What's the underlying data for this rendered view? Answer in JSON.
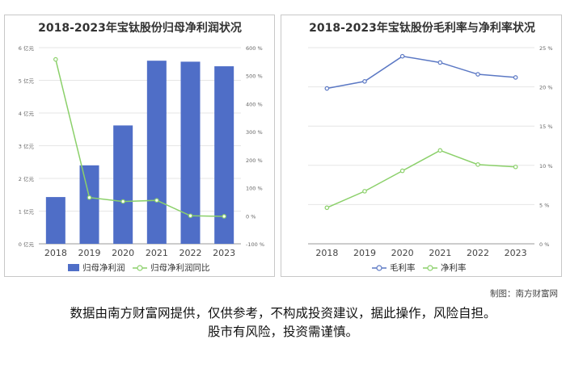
{
  "charts": [
    {
      "title": "2018-2023年宝钛股份归母净利润状况",
      "type": "bar+line",
      "categories": [
        "2018",
        "2019",
        "2020",
        "2021",
        "2022",
        "2023"
      ],
      "y_left": {
        "min": 0,
        "max": 6,
        "ticks": [
          "0 亿元",
          "1 亿元",
          "2 亿元",
          "3 亿元",
          "4 亿元",
          "5 亿元",
          "6 亿元"
        ]
      },
      "y_right": {
        "min": -100,
        "max": 600,
        "ticks": [
          "-100 %",
          "0 %",
          "100 %",
          "200 %",
          "300 %",
          "400 %",
          "500 %",
          "600 %"
        ]
      },
      "legend": [
        "归母净利润",
        "归母净利润同比"
      ]
    },
    {
      "title": "2018-2023年宝钛股份毛利率与净利率状况",
      "type": "line",
      "categories": [
        "2018",
        "2019",
        "2020",
        "2021",
        "2022",
        "2023"
      ],
      "y_right": {
        "min": 0,
        "max": 25,
        "ticks": [
          "0 %",
          "5 %",
          "10 %",
          "15 %",
          "20 %",
          "25 %"
        ]
      },
      "legend": [
        "毛利率",
        "净利率"
      ]
    }
  ],
  "chart_data": [
    {
      "type": "bar",
      "title": "2018-2023年宝钛股份归母净利润状况",
      "categories": [
        "2018",
        "2019",
        "2020",
        "2021",
        "2022",
        "2023"
      ],
      "series": [
        {
          "name": "归母净利润",
          "type": "bar",
          "axis": "left",
          "unit": "亿元",
          "values": [
            1.43,
            2.4,
            3.62,
            5.6,
            5.57,
            5.43
          ]
        },
        {
          "name": "归母净利润同比",
          "type": "line",
          "axis": "right",
          "unit": "%",
          "values": [
            558,
            65,
            51,
            55,
            0,
            -2
          ]
        }
      ],
      "ylim_left": [
        0,
        6
      ],
      "ylim_right": [
        -100,
        600
      ],
      "grid": true,
      "legend_position": "bottom"
    },
    {
      "type": "line",
      "title": "2018-2023年宝钛股份毛利率与净利率状况",
      "categories": [
        "2018",
        "2019",
        "2020",
        "2021",
        "2022",
        "2023"
      ],
      "series": [
        {
          "name": "毛利率",
          "unit": "%",
          "values": [
            19.8,
            20.7,
            23.9,
            23.1,
            21.6,
            21.2
          ]
        },
        {
          "name": "净利率",
          "unit": "%",
          "values": [
            4.6,
            6.7,
            9.3,
            11.9,
            10.1,
            9.8
          ]
        }
      ],
      "ylim": [
        0,
        25
      ],
      "grid": true,
      "legend_position": "bottom"
    }
  ],
  "colors": {
    "bar": "#4f6ec7",
    "line_green": "#8bd06a",
    "line_blue": "#5b78c4",
    "grid": "#e6e6e6",
    "axis_text": "#666666"
  },
  "credit": "制图：南方财富网",
  "disclaimer_line1": "数据由南方财富网提供，仅供参考，不构成投资建议，据此操作，风险自担。",
  "disclaimer_line2": "股市有风险，投资需谨慎。"
}
